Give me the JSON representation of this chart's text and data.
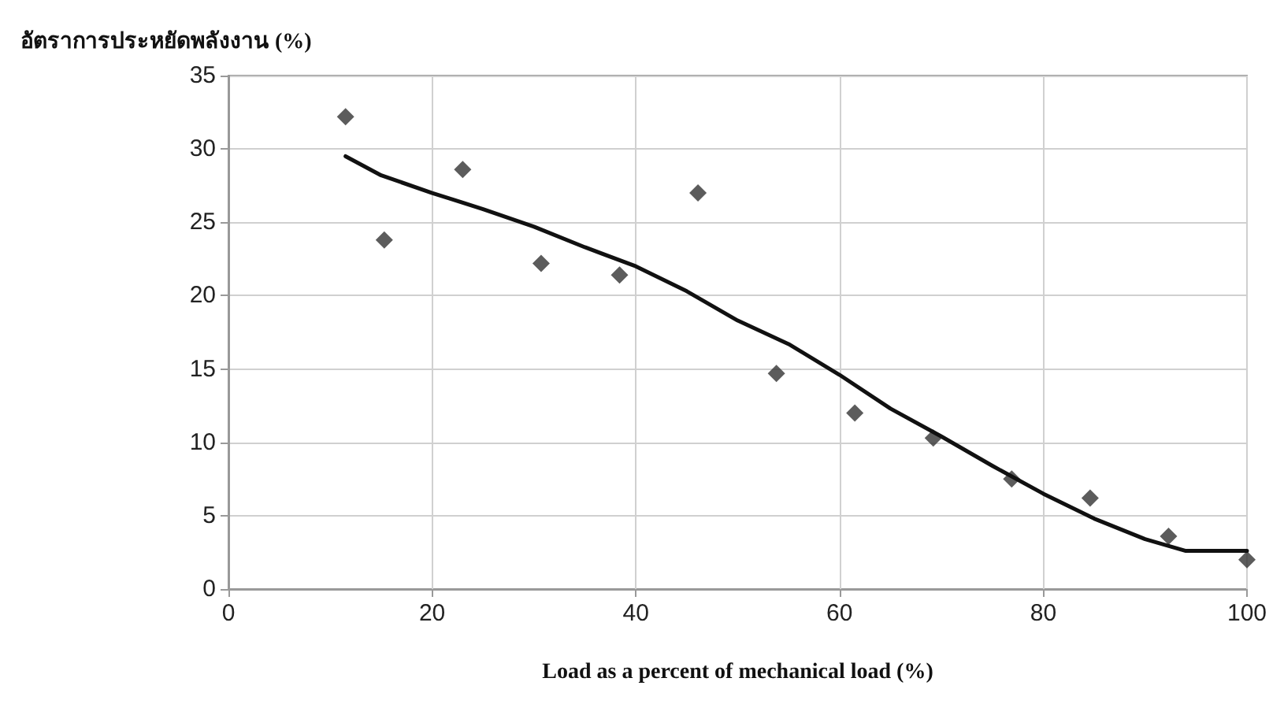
{
  "chart_data": {
    "type": "scatter",
    "ylabel": "อัตราการประหยัดพลังงาน (%)",
    "xlabel": "Load as a percent of mechanical load (%)",
    "xlim": [
      0,
      100
    ],
    "xticks": [
      0,
      20,
      40,
      60,
      80,
      100
    ],
    "ylim": [
      0,
      35
    ],
    "yticks": [
      0,
      5,
      10,
      15,
      20,
      25,
      30,
      35
    ],
    "grid": true,
    "marker": "diamond",
    "series": [
      {
        "color": "#333333",
        "x": [
          11.5,
          15.3,
          23,
          30.7,
          38.4,
          46.1,
          53.8,
          61.5,
          69.2,
          76.9,
          84.6,
          92.3,
          100
        ],
        "values": [
          32.2,
          23.8,
          28.6,
          22.2,
          21.4,
          27,
          14.7,
          12,
          10.3,
          7.5,
          6.2,
          3.6,
          2
        ]
      },
      {
        "type": "line",
        "color": "#111111",
        "marker": "none",
        "line_style": "solid",
        "x": [
          11.5,
          15,
          20,
          25,
          30,
          35,
          40,
          45,
          50,
          55,
          60,
          65,
          70,
          75,
          80,
          85,
          90,
          94,
          100
        ],
        "values": [
          29.5,
          28.2,
          27,
          25.9,
          24.7,
          23.3,
          22,
          20.3,
          18.3,
          16.7,
          14.6,
          12.3,
          10.4,
          8.4,
          6.5,
          4.8,
          3.4,
          2.6,
          2.6
        ]
      }
    ]
  }
}
